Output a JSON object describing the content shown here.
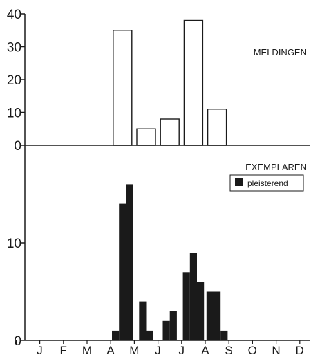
{
  "chart_data": [
    {
      "type": "bar",
      "panel": "top",
      "label": "MELDINGEN",
      "ylim": [
        0,
        40
      ],
      "yticks": [
        0,
        10,
        20,
        30,
        40
      ],
      "bar_style": "outline",
      "bars": [
        {
          "month": "M",
          "value": 35
        },
        {
          "month": "J",
          "value": 5
        },
        {
          "month": "J",
          "value": 8
        },
        {
          "month": "A",
          "value": 38
        },
        {
          "month": "S",
          "value": 11
        }
      ]
    },
    {
      "type": "bar",
      "panel": "bottom",
      "label": "EXEMPLAREN",
      "ylim": [
        0,
        20
      ],
      "yticks": [
        0,
        10
      ],
      "bar_style": "filled",
      "legend": {
        "label": "pleisterend",
        "placement": "top-right"
      },
      "months": [
        "J",
        "F",
        "M",
        "A",
        "M",
        "J",
        "J",
        "A",
        "S",
        "O",
        "N",
        "D"
      ],
      "bars": [
        {
          "month": "M",
          "values": [
            1,
            14,
            16
          ]
        },
        {
          "month": "J",
          "values": [
            4,
            1
          ]
        },
        {
          "month": "J",
          "values": [
            2,
            3
          ]
        },
        {
          "month": "A",
          "values": [
            7,
            9,
            6
          ]
        },
        {
          "month": "S",
          "values": [
            5,
            5,
            1
          ]
        }
      ]
    }
  ],
  "colors": {
    "axis": "#1a1a1a",
    "bar_fill": "#1a1a1a",
    "bar_outline": "#1a1a1a",
    "background": "#ffffff"
  }
}
